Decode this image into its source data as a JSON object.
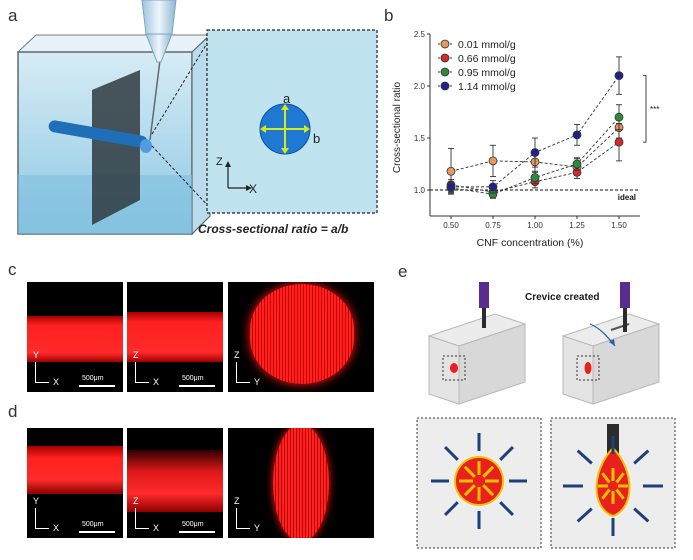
{
  "panels": {
    "a": "a",
    "b": "b",
    "c": "c",
    "d": "d",
    "e": "e"
  },
  "panel_a": {
    "inset_a": "a",
    "inset_b": "b",
    "axis_z": "Z",
    "axis_x": "X",
    "caption": "Cross-sectional ratio = a/b"
  },
  "chart_data": {
    "type": "scatter",
    "xlabel": "CNF concentration (%)",
    "ylabel": "Cross-sectional ratio",
    "categories": [
      "0.50",
      "0.75",
      "1.00",
      "1.25",
      "1.50"
    ],
    "x": [
      0.5,
      0.75,
      1.0,
      1.25,
      1.5
    ],
    "ylim": [
      0.75,
      2.5
    ],
    "yticks": [
      "1.0",
      "1.5",
      "2.0",
      "2.5"
    ],
    "reference_line": {
      "y": 1.0,
      "label": "ideal"
    },
    "significance": "***",
    "legend_position": "top-left",
    "series": [
      {
        "name": "0.01 mmol/g",
        "color": "#e8975d",
        "y": [
          1.18,
          1.28,
          1.27,
          1.22,
          1.6
        ],
        "err": [
          0.22,
          0.15,
          0.1,
          0.08,
          0.1
        ]
      },
      {
        "name": "0.66 mmol/g",
        "color": "#d62a2a",
        "y": [
          1.05,
          0.98,
          1.08,
          1.17,
          1.46
        ],
        "err": [
          0.05,
          0.05,
          0.06,
          0.06,
          0.18
        ]
      },
      {
        "name": "0.95 mmol/g",
        "color": "#2e8b3a",
        "y": [
          1.02,
          0.96,
          1.12,
          1.25,
          1.7
        ],
        "err": [
          0.05,
          0.04,
          0.06,
          0.06,
          0.12
        ]
      },
      {
        "name": "1.14 mmol/g",
        "color": "#22208a",
        "y": [
          1.03,
          1.03,
          1.36,
          1.53,
          2.1
        ],
        "err": [
          0.05,
          0.06,
          0.14,
          0.1,
          0.18
        ]
      }
    ]
  },
  "panel_c": {
    "img1": {
      "vert": "Y",
      "horiz": "X",
      "scale": "500μm"
    },
    "img2": {
      "vert": "Z",
      "horiz": "X",
      "scale": "500μm"
    },
    "img3": {
      "vert": "Z",
      "horiz": "Y"
    }
  },
  "panel_d": {
    "img1": {
      "vert": "Y",
      "horiz": "X",
      "scale": "500μm"
    },
    "img2": {
      "vert": "Z",
      "horiz": "X",
      "scale": "500μm"
    },
    "img3": {
      "vert": "Z",
      "horiz": "Y"
    }
  },
  "panel_e": {
    "annotation": "Crevice created"
  },
  "colors": {
    "fluorescence": "#ff1a1a",
    "nozzle": "#5b2c8f",
    "arrow_out": "#1f3f7a",
    "arrow_in": "#f2c200",
    "ink": "#e8201e"
  }
}
